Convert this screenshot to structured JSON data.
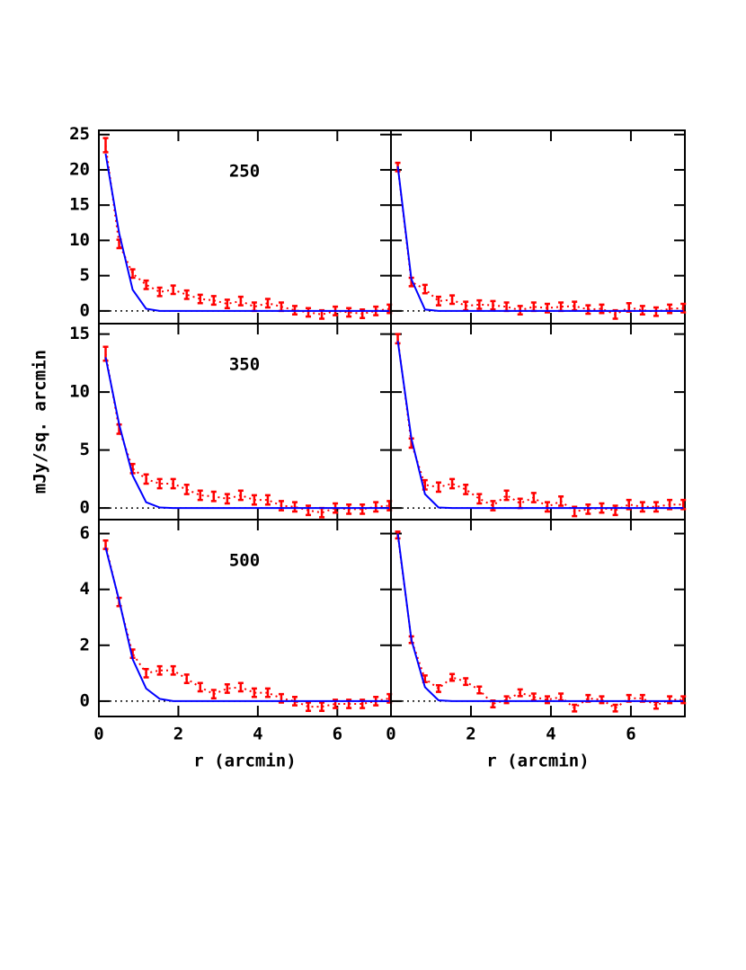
{
  "chart_data": [
    {
      "type": "line",
      "annotation": "250",
      "xlim": [
        0,
        7.35
      ],
      "ylim": [
        -1.8,
        25.6
      ],
      "xticks": [
        0,
        2,
        4,
        6
      ],
      "yticks": [
        0,
        5,
        10,
        15,
        20,
        25
      ],
      "xtick_labels": false,
      "ytick_labels": true,
      "zero_line": true,
      "x": [
        0.17,
        0.51,
        0.85,
        1.19,
        1.53,
        1.87,
        2.21,
        2.55,
        2.89,
        3.23,
        3.57,
        3.91,
        4.25,
        4.59,
        4.93,
        5.27,
        5.61,
        5.95,
        6.29,
        6.63,
        6.97,
        7.31
      ],
      "series": [
        {
          "color": "#ff0000",
          "dash": "dotted",
          "values": [
            23.5,
            9.5,
            5.3,
            3.7,
            2.7,
            3.0,
            2.3,
            1.7,
            1.5,
            1.0,
            1.4,
            0.6,
            1.1,
            0.6,
            0.1,
            -0.2,
            -0.5,
            0,
            -0.2,
            -0.4,
            0,
            0.3
          ],
          "errors": [
            1.0,
            0.6,
            0.6,
            0.6,
            0.6,
            0.6,
            0.6,
            0.6,
            0.6,
            0.6,
            0.6,
            0.6,
            0.6,
            0.6,
            0.6,
            0.6,
            0.6,
            0.6,
            0.6,
            0.6,
            0.6,
            0.6
          ]
        },
        {
          "color": "#0000ff",
          "dash": "solid",
          "values": [
            22.3,
            11,
            3,
            0.3,
            0,
            0,
            0,
            0,
            0,
            0,
            0,
            0,
            0,
            0,
            0,
            0,
            0,
            0,
            0,
            0,
            0,
            0
          ]
        }
      ]
    },
    {
      "type": "line",
      "xlim": [
        0,
        7.35
      ],
      "ylim": [
        -1.8,
        25.6
      ],
      "xticks": [
        0,
        2,
        4,
        6
      ],
      "yticks": [
        0,
        5,
        10,
        15,
        20,
        25
      ],
      "xtick_labels": false,
      "ytick_labels": false,
      "zero_line": true,
      "x": [
        0.17,
        0.51,
        0.85,
        1.19,
        1.53,
        1.87,
        2.21,
        2.55,
        2.89,
        3.23,
        3.57,
        3.91,
        4.25,
        4.59,
        4.93,
        5.27,
        5.61,
        5.95,
        6.29,
        6.63,
        6.97,
        7.31
      ],
      "series": [
        {
          "color": "#ff0000",
          "dash": "dotted",
          "values": [
            20.4,
            4.1,
            3.1,
            1.4,
            1.6,
            0.7,
            0.9,
            0.8,
            0.6,
            0.1,
            0.6,
            0.4,
            0.6,
            0.7,
            0.2,
            0.3,
            -0.5,
            0.5,
            0.1,
            -0.1,
            0.3,
            0.4
          ],
          "errors": [
            0.6,
            0.6,
            0.6,
            0.6,
            0.6,
            0.6,
            0.6,
            0.6,
            0.6,
            0.6,
            0.6,
            0.6,
            0.6,
            0.6,
            0.6,
            0.6,
            0.6,
            0.6,
            0.6,
            0.6,
            0.6,
            0.6
          ]
        },
        {
          "color": "#0000ff",
          "dash": "solid",
          "values": [
            20.5,
            4.5,
            0.2,
            0,
            0,
            0,
            0,
            0,
            0,
            0,
            0,
            0,
            0,
            0,
            0,
            0,
            0,
            0,
            0,
            0,
            0,
            0
          ]
        }
      ]
    },
    {
      "type": "line",
      "annotation": "350",
      "ylabel": "mJy/sq. arcmin",
      "xlim": [
        0,
        7.35
      ],
      "ylim": [
        -1,
        15.9
      ],
      "xticks": [
        0,
        2,
        4,
        6
      ],
      "yticks": [
        0,
        5,
        10,
        15
      ],
      "xtick_labels": false,
      "ytick_labels": true,
      "zero_line": true,
      "x": [
        0.17,
        0.51,
        0.85,
        1.19,
        1.53,
        1.87,
        2.21,
        2.55,
        2.89,
        3.23,
        3.57,
        3.91,
        4.25,
        4.59,
        4.93,
        5.27,
        5.61,
        5.95,
        6.29,
        6.63,
        6.97,
        7.31
      ],
      "series": [
        {
          "color": "#ff0000",
          "dash": "dotted",
          "values": [
            13.3,
            6.8,
            3.4,
            2.5,
            2.1,
            2.1,
            1.6,
            1.1,
            1.0,
            0.8,
            1.1,
            0.7,
            0.7,
            0.2,
            0.1,
            -0.2,
            -0.4,
            0,
            -0.1,
            -0.1,
            0.1,
            0.2
          ],
          "errors": [
            0.6,
            0.4,
            0.4,
            0.4,
            0.4,
            0.4,
            0.4,
            0.4,
            0.4,
            0.4,
            0.4,
            0.4,
            0.4,
            0.4,
            0.4,
            0.4,
            0.4,
            0.4,
            0.4,
            0.4,
            0.4,
            0.4
          ]
        },
        {
          "color": "#0000ff",
          "dash": "solid",
          "values": [
            13,
            7.2,
            2.8,
            0.5,
            0.05,
            0,
            0,
            0,
            0,
            0,
            0,
            0,
            0,
            0,
            0,
            0,
            0,
            0,
            0,
            0,
            0,
            0
          ]
        }
      ]
    },
    {
      "type": "line",
      "xlim": [
        0,
        7.35
      ],
      "ylim": [
        -1,
        15.9
      ],
      "xticks": [
        0,
        2,
        4,
        6
      ],
      "yticks": [
        0,
        5,
        10,
        15
      ],
      "xtick_labels": false,
      "ytick_labels": false,
      "zero_line": true,
      "x": [
        0.17,
        0.51,
        0.85,
        1.19,
        1.53,
        1.87,
        2.21,
        2.55,
        2.89,
        3.23,
        3.57,
        3.91,
        4.25,
        4.59,
        4.93,
        5.27,
        5.61,
        5.95,
        6.29,
        6.63,
        6.97,
        7.31
      ],
      "series": [
        {
          "color": "#ff0000",
          "dash": "dotted",
          "values": [
            14.6,
            5.6,
            2.0,
            1.8,
            2.1,
            1.6,
            0.8,
            0.2,
            1.1,
            0.4,
            0.9,
            0.1,
            0.6,
            -0.3,
            -0.1,
            0,
            -0.2,
            0.3,
            0.1,
            0.1,
            0.3,
            0.3
          ],
          "errors": [
            0.4,
            0.4,
            0.4,
            0.4,
            0.4,
            0.4,
            0.4,
            0.4,
            0.4,
            0.4,
            0.4,
            0.4,
            0.4,
            0.4,
            0.4,
            0.4,
            0.4,
            0.4,
            0.4,
            0.4,
            0.4,
            0.4
          ]
        },
        {
          "color": "#0000ff",
          "dash": "solid",
          "values": [
            14.4,
            6,
            1.2,
            0.05,
            0,
            0,
            0,
            0,
            0,
            0,
            0,
            0,
            0,
            0,
            0,
            0,
            0,
            0,
            0,
            0,
            0,
            0
          ]
        }
      ]
    },
    {
      "type": "line",
      "annotation": "500",
      "xlabel": "r (arcmin)",
      "xlim": [
        0,
        7.35
      ],
      "ylim": [
        -0.55,
        6.5
      ],
      "xticks": [
        0,
        2,
        4,
        6
      ],
      "yticks": [
        0,
        2,
        4,
        6
      ],
      "xtick_labels": true,
      "ytick_labels": true,
      "zero_line": true,
      "x": [
        0.17,
        0.51,
        0.85,
        1.19,
        1.53,
        1.87,
        2.21,
        2.55,
        2.89,
        3.23,
        3.57,
        3.91,
        4.25,
        4.59,
        4.93,
        5.27,
        5.61,
        5.95,
        6.29,
        6.63,
        6.97,
        7.31
      ],
      "series": [
        {
          "color": "#ff0000",
          "dash": "dotted",
          "values": [
            5.6,
            3.55,
            1.7,
            1.0,
            1.1,
            1.1,
            0.8,
            0.5,
            0.25,
            0.45,
            0.5,
            0.3,
            0.3,
            0.1,
            0.0,
            -0.2,
            -0.2,
            -0.1,
            -0.1,
            -0.1,
            0.0,
            0.1
          ],
          "errors": [
            0.15,
            0.15,
            0.15,
            0.15,
            0.15,
            0.15,
            0.15,
            0.15,
            0.15,
            0.15,
            0.15,
            0.15,
            0.15,
            0.15,
            0.15,
            0.15,
            0.15,
            0.15,
            0.15,
            0.15,
            0.15,
            0.15
          ]
        },
        {
          "color": "#0000ff",
          "dash": "solid",
          "values": [
            5.5,
            3.6,
            1.5,
            0.45,
            0.08,
            0,
            0,
            0,
            0,
            0,
            0,
            0,
            0,
            0,
            0,
            0,
            0,
            0,
            0,
            0,
            0,
            0
          ]
        }
      ]
    },
    {
      "type": "line",
      "xlabel": "r (arcmin)",
      "xlim": [
        0,
        7.35
      ],
      "ylim": [
        -0.55,
        6.5
      ],
      "xticks": [
        0,
        2,
        4,
        6
      ],
      "yticks": [
        0,
        2,
        4,
        6
      ],
      "xtick_labels": true,
      "ytick_labels": false,
      "zero_line": true,
      "x": [
        0.17,
        0.51,
        0.85,
        1.19,
        1.53,
        1.87,
        2.21,
        2.55,
        2.89,
        3.23,
        3.57,
        3.91,
        4.25,
        4.59,
        4.93,
        5.27,
        5.61,
        5.95,
        6.29,
        6.63,
        6.97,
        7.31
      ],
      "series": [
        {
          "color": "#ff0000",
          "dash": "dotted",
          "values": [
            5.95,
            2.2,
            0.8,
            0.45,
            0.85,
            0.7,
            0.4,
            -0.1,
            0.05,
            0.3,
            0.15,
            0.05,
            0.15,
            -0.25,
            0.1,
            0.05,
            -0.25,
            0.1,
            0.1,
            -0.15,
            0.05,
            0.05
          ],
          "errors": [
            0.12,
            0.12,
            0.12,
            0.12,
            0.12,
            0.12,
            0.12,
            0.12,
            0.12,
            0.12,
            0.12,
            0.12,
            0.12,
            0.12,
            0.12,
            0.12,
            0.12,
            0.12,
            0.12,
            0.12,
            0.12,
            0.12
          ]
        },
        {
          "color": "#0000ff",
          "dash": "solid",
          "values": [
            6,
            2.2,
            0.5,
            0.03,
            0,
            0,
            0,
            0,
            0,
            0,
            0,
            0,
            0,
            0,
            0,
            0,
            0,
            0,
            0,
            0,
            0,
            0
          ]
        }
      ]
    }
  ]
}
